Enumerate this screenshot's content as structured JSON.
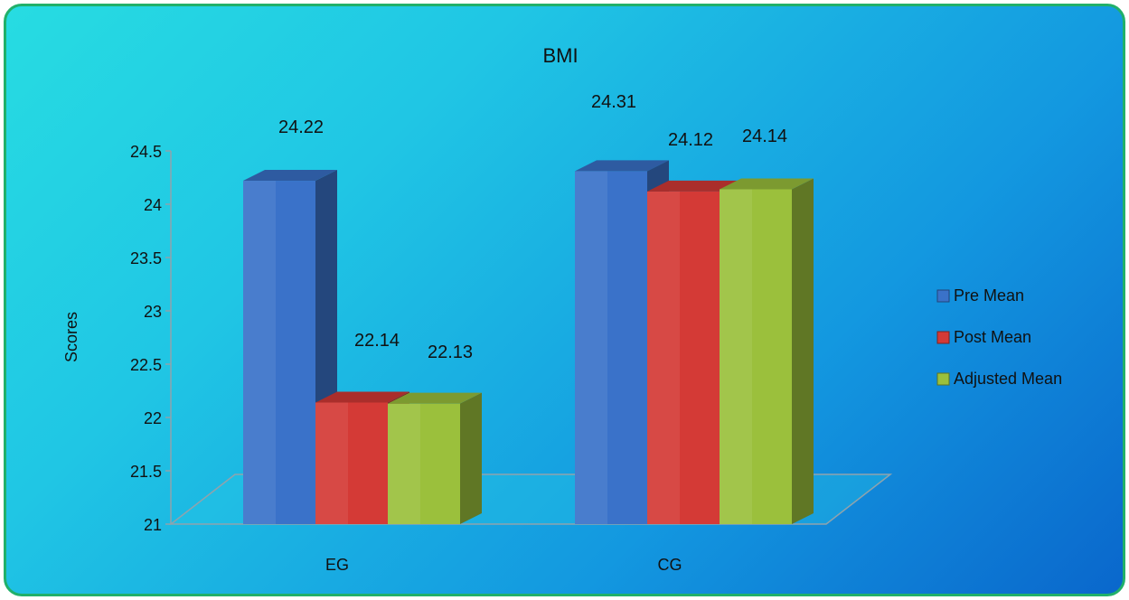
{
  "chart_data": {
    "type": "bar",
    "title": "BMI",
    "xlabel": "",
    "ylabel": "Scores",
    "ylim": [
      21,
      24.5
    ],
    "yticks": [
      "21",
      "21.5",
      "22",
      "22.5",
      "23",
      "23.5",
      "24",
      "24.5"
    ],
    "categories": [
      "EG",
      "CG"
    ],
    "series": [
      {
        "name": "Pre Mean",
        "values": [
          24.22,
          24.31
        ],
        "labels": [
          "24.22",
          "24.31"
        ],
        "color": "#3a72c9"
      },
      {
        "name": "Post Mean",
        "values": [
          22.14,
          24.12
        ],
        "labels": [
          "22.14",
          "24.12"
        ],
        "color": "#d43a36"
      },
      {
        "name": "Adjusted Mean",
        "values": [
          22.13,
          24.14
        ],
        "labels": [
          "22.13",
          "24.14"
        ],
        "color": "#9bc03c"
      }
    ],
    "legend_position": "right",
    "style": "3d-clustered-column"
  }
}
